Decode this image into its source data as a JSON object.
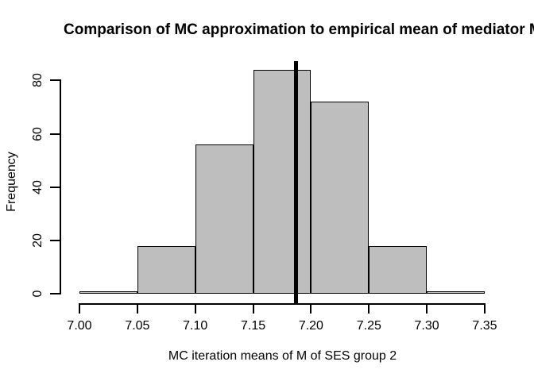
{
  "chart_data": {
    "type": "bar",
    "subtype": "histogram",
    "title": "Comparison of MC approximation to empirical mean of mediator M",
    "xlabel": "MC iteration means of M of SES group 2",
    "ylabel": "Frequency",
    "bin_edges": [
      7.0,
      7.05,
      7.1,
      7.15,
      7.2,
      7.25,
      7.3,
      7.35
    ],
    "counts": [
      1,
      18,
      56,
      84,
      72,
      18,
      1
    ],
    "x_tick_values": [
      7.0,
      7.05,
      7.1,
      7.15,
      7.2,
      7.25,
      7.3,
      7.35
    ],
    "x_tick_labels": [
      "7.00",
      "7.05",
      "7.10",
      "7.15",
      "7.20",
      "7.25",
      "7.30",
      "7.35"
    ],
    "y_tick_values": [
      0,
      20,
      40,
      60,
      80
    ],
    "y_tick_labels": [
      "0",
      "20",
      "40",
      "60",
      "80"
    ],
    "xlim": [
      6.986,
      7.364
    ],
    "ylim": [
      -3.4,
      87.4
    ],
    "grid": false,
    "legend": false,
    "vline": {
      "value": 7.187,
      "color": "#000000"
    },
    "colors": {
      "bar_fill": "#BEBEBE",
      "bar_border": "#000000",
      "axis": "#000000",
      "text": "#000000",
      "background": "#FFFFFF"
    }
  }
}
